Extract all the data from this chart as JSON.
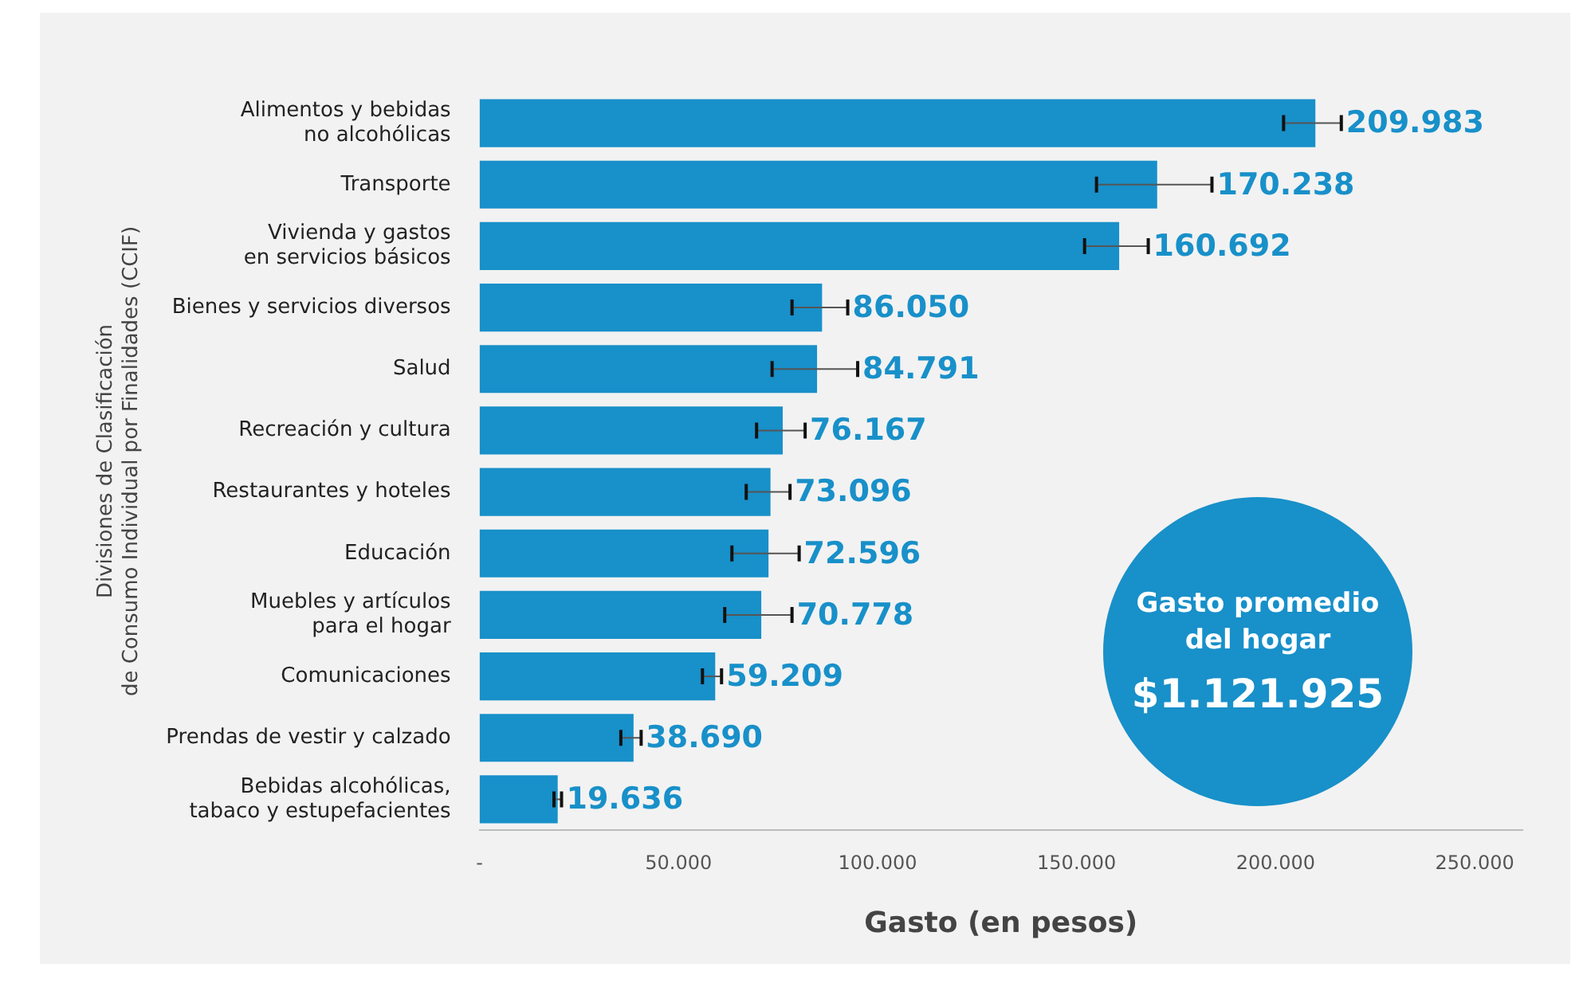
{
  "chart_data": {
    "type": "bar",
    "orientation": "horizontal",
    "xlabel": "Gasto (en pesos)",
    "ylabel": "Divisiones de Clasificación\nde Consumo Individual por Finalidades (CCIF)",
    "categories": [
      "Alimentos y bebidas\nno alcohólicas",
      "Transporte",
      "Vivienda y gastos\nen servicios básicos",
      "Bienes y servicios diversos",
      "Salud",
      "Recreación y cultura",
      "Restaurantes y hoteles",
      "Educación",
      "Muebles y artículos\npara el hogar",
      "Comunicaciones",
      "Prendas de vestir y calzado",
      "Bebidas alcohólicas,\ntabaco y estupefacientes"
    ],
    "values": [
      209983,
      170238,
      160692,
      86050,
      84791,
      76167,
      73096,
      72596,
      70778,
      59209,
      38690,
      19636
    ],
    "errors": [
      [
        202000,
        216500
      ],
      [
        155000,
        184000
      ],
      [
        152000,
        168000
      ],
      [
        78500,
        92500
      ],
      [
        73500,
        95000
      ],
      [
        69600,
        81800
      ],
      [
        67000,
        78000
      ],
      [
        63400,
        80300
      ],
      [
        61600,
        78500
      ],
      [
        56000,
        60800
      ],
      [
        35500,
        40600
      ],
      [
        18700,
        20600
      ]
    ],
    "color": "#1890c9",
    "value_labels": [
      "209.983",
      "170.238",
      "160.692",
      "86.050",
      "84.791",
      "76.167",
      "73.096",
      "72.596",
      "70.778",
      "59.209",
      "38.690",
      "19.636"
    ],
    "xlim": [
      0,
      262000
    ],
    "xticks": [
      {
        "value": 0,
        "label": "-"
      },
      {
        "value": 50000,
        "label": "50.000"
      },
      {
        "value": 100000,
        "label": "100.000"
      },
      {
        "value": 150000,
        "label": "150.000"
      },
      {
        "value": 200000,
        "label": "200.000"
      },
      {
        "value": 250000,
        "label": "250.000"
      }
    ],
    "grid": false,
    "legend": false,
    "annotations": [
      "Gasto promedio\ndel hogar",
      "$1.121.925"
    ]
  }
}
